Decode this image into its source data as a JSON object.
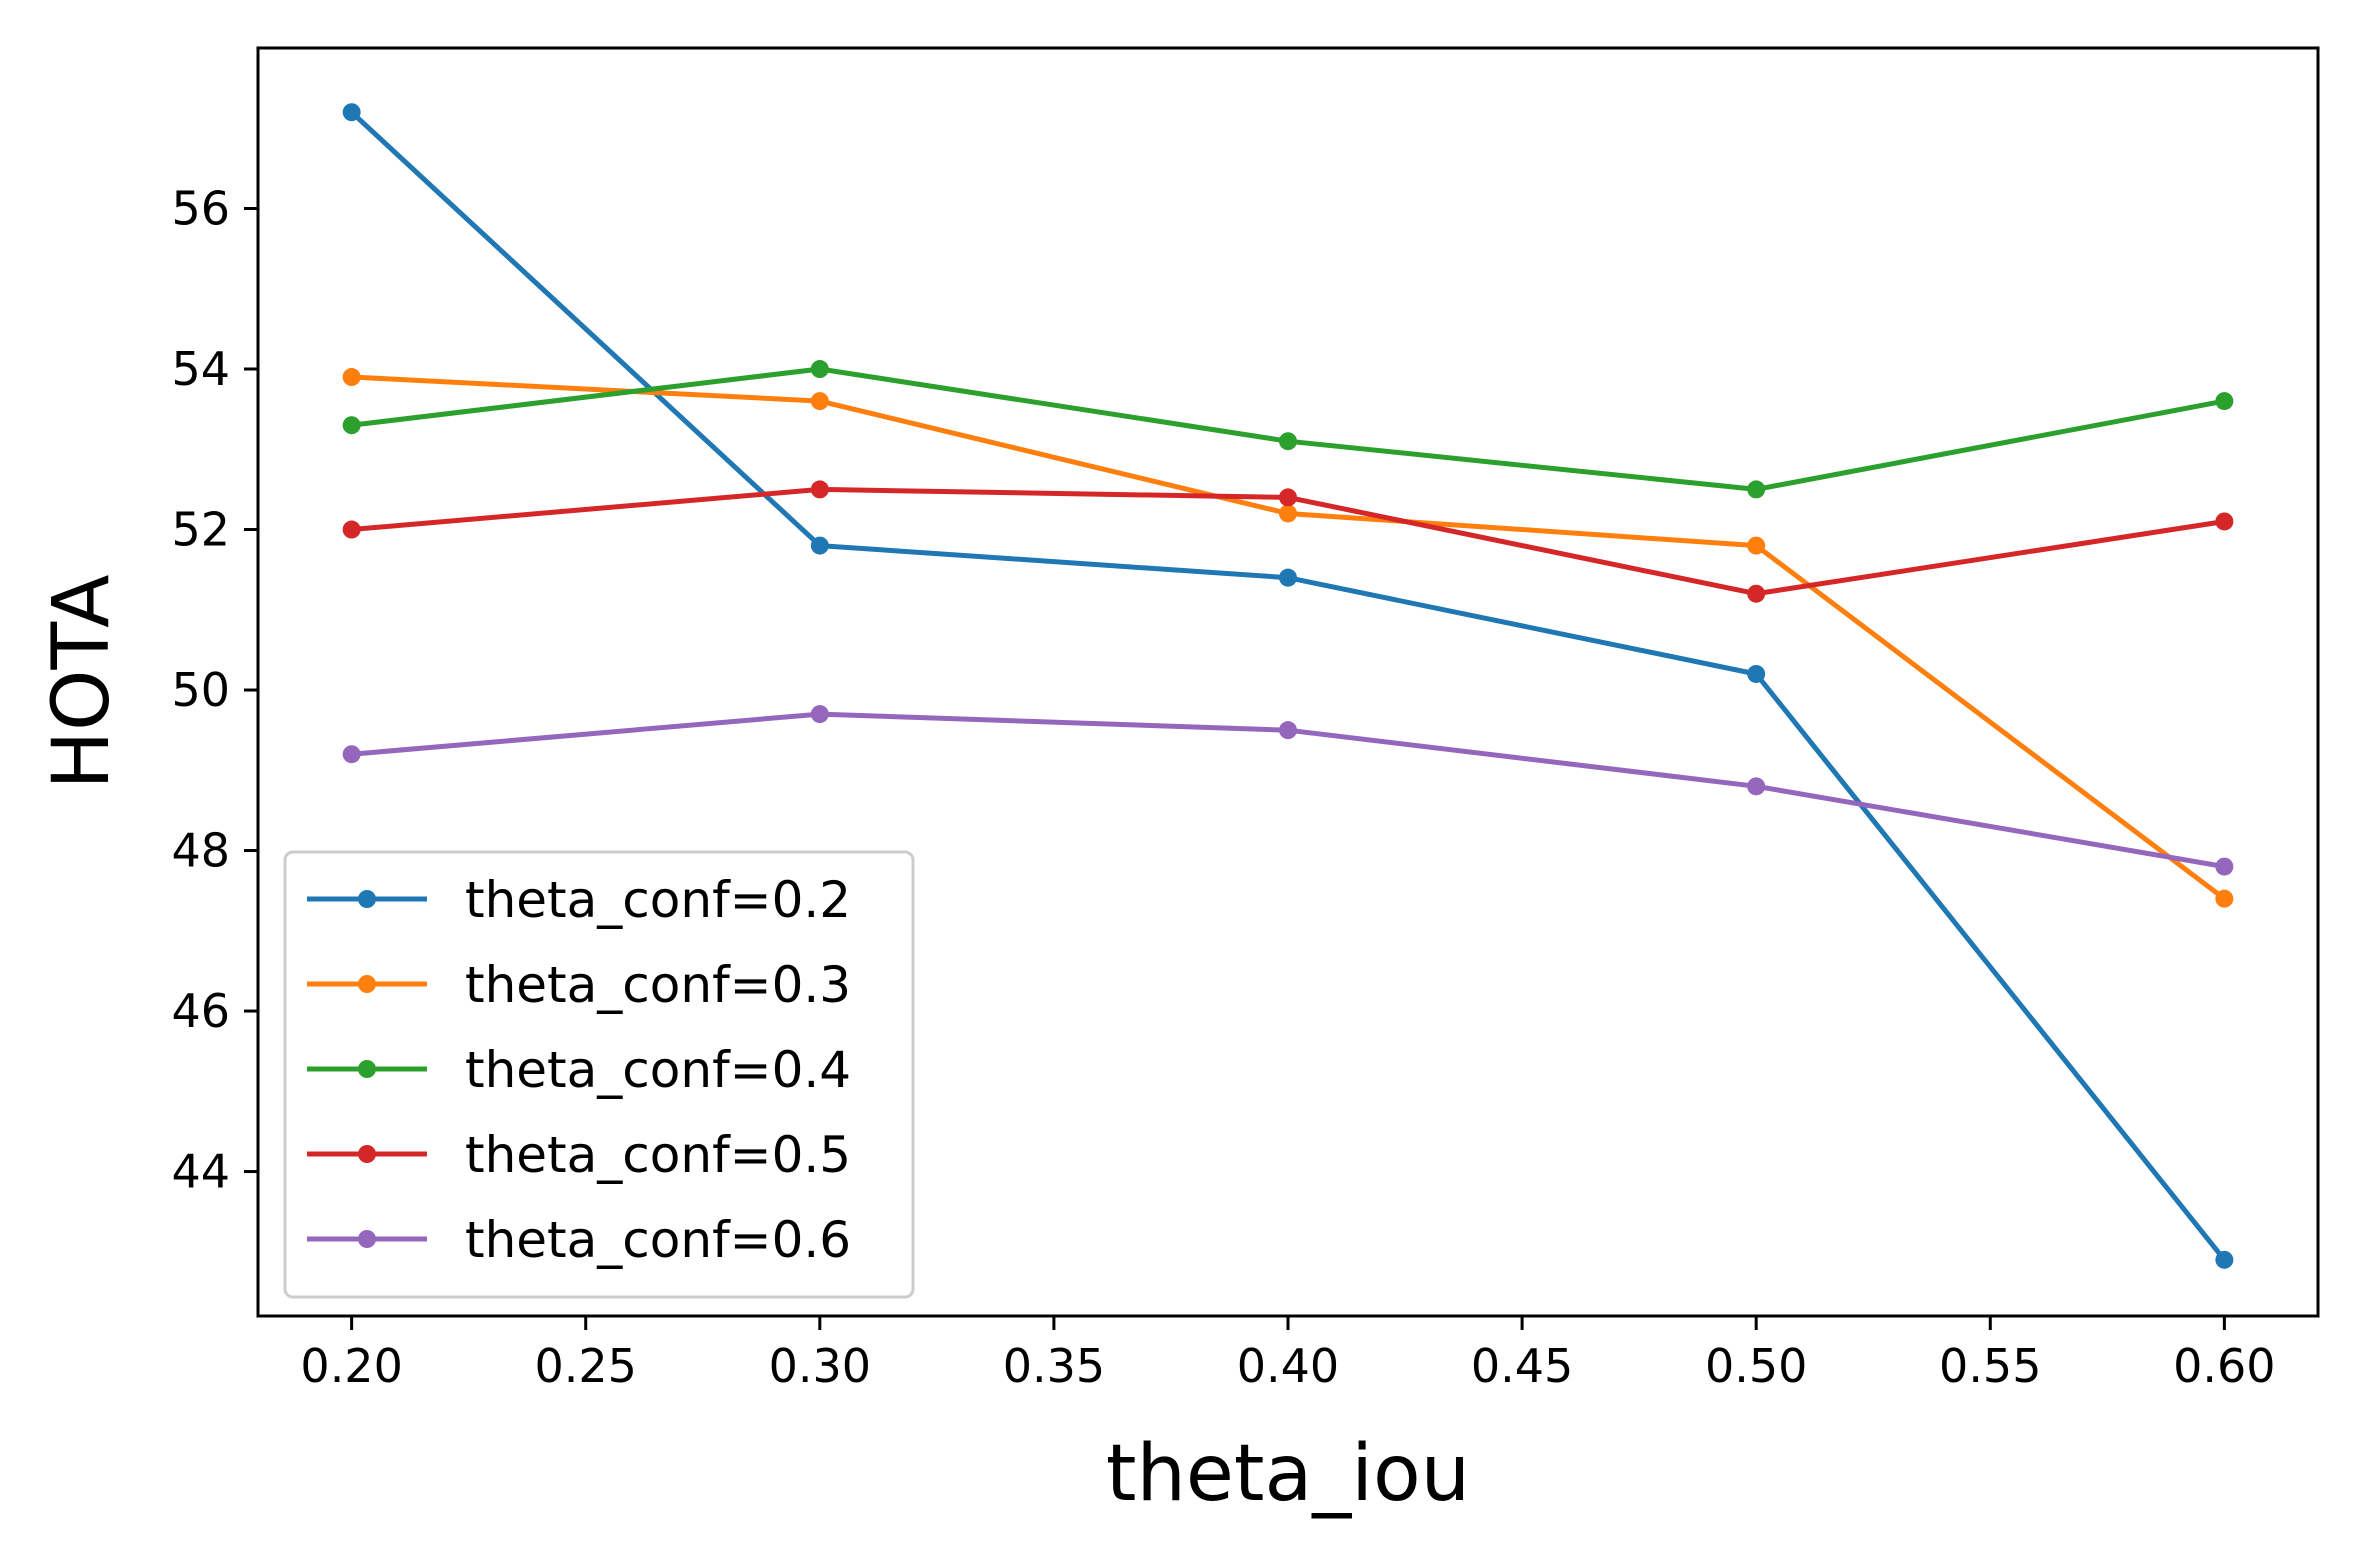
{
  "chart_data": {
    "type": "line",
    "title": "",
    "xlabel": "theta_iou",
    "ylabel": "HOTA",
    "x": [
      0.2,
      0.3,
      0.4,
      0.5,
      0.6
    ],
    "xlim": [
      0.18,
      0.62
    ],
    "ylim": [
      42.2,
      58.0
    ],
    "xticks": [
      "0.20",
      "0.25",
      "0.30",
      "0.35",
      "0.40",
      "0.45",
      "0.50",
      "0.55",
      "0.60"
    ],
    "xtick_values": [
      0.2,
      0.25,
      0.3,
      0.35,
      0.4,
      0.45,
      0.5,
      0.55,
      0.6
    ],
    "yticks": [
      "44",
      "46",
      "48",
      "50",
      "52",
      "54",
      "56"
    ],
    "ytick_values": [
      44,
      46,
      48,
      50,
      52,
      54,
      56
    ],
    "grid": false,
    "legend_position": "bottom-left",
    "series": [
      {
        "name": "theta_conf=0.2",
        "color": "#1f77b4",
        "values": [
          57.2,
          51.8,
          51.4,
          50.2,
          42.9
        ]
      },
      {
        "name": "theta_conf=0.3",
        "color": "#ff7f0e",
        "values": [
          53.9,
          53.6,
          52.2,
          51.8,
          47.4
        ]
      },
      {
        "name": "theta_conf=0.4",
        "color": "#2ca02c",
        "values": [
          53.3,
          54.0,
          53.1,
          52.5,
          53.6
        ]
      },
      {
        "name": "theta_conf=0.5",
        "color": "#d62728",
        "values": [
          52.0,
          52.5,
          52.4,
          51.2,
          52.1
        ]
      },
      {
        "name": "theta_conf=0.6",
        "color": "#9467bd",
        "values": [
          49.2,
          49.7,
          49.5,
          48.8,
          47.8
        ]
      }
    ]
  }
}
